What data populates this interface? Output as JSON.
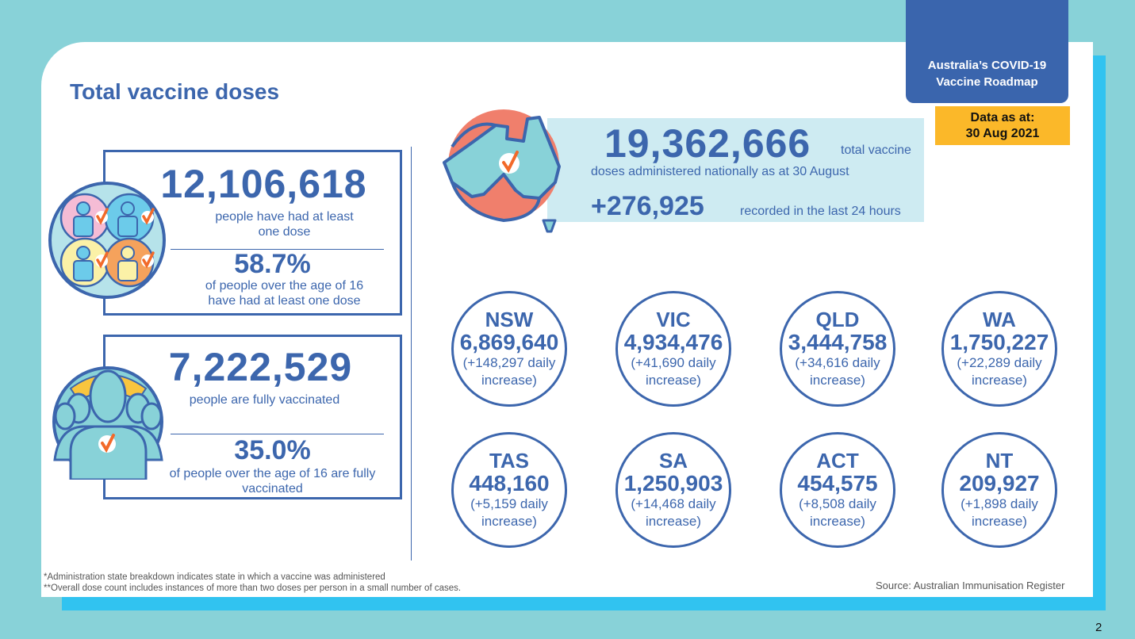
{
  "header": {
    "title": "Total vaccine doses",
    "roadmap_line1": "Australia’s COVID-19",
    "roadmap_line2": "Vaccine Roadmap",
    "data_as_at_label": "Data as at:",
    "data_as_at_date": "30 Aug 2021"
  },
  "first_dose": {
    "count": "12,106,618",
    "count_label": "people have had at least one dose",
    "percent": "58.7%",
    "percent_label": "of people over the age of 16 have had at least one dose"
  },
  "fully_vaccinated": {
    "count": "7,222,529",
    "count_label": "people are fully vaccinated",
    "percent": "35.0%",
    "percent_label": "of people over the age of 16 are fully vaccinated"
  },
  "national": {
    "total": "19,362,666",
    "total_label": "total vaccine",
    "line2": "doses administered nationally as at 30 August",
    "increase": "+276,925",
    "increase_label": "recorded in the last 24 hours"
  },
  "states": [
    {
      "code": "NSW",
      "total": "6,869,640",
      "increase": "(+148,297 daily",
      "increase2": "increase)"
    },
    {
      "code": "VIC",
      "total": "4,934,476",
      "increase": "(+41,690 daily",
      "increase2": "increase)"
    },
    {
      "code": "QLD",
      "total": "3,444,758",
      "increase": "(+34,616 daily",
      "increase2": "increase)"
    },
    {
      "code": "WA",
      "total": "1,750,227",
      "increase": "(+22,289 daily",
      "increase2": "increase)"
    },
    {
      "code": "TAS",
      "total": "448,160",
      "increase": "(+5,159 daily",
      "increase2": "increase)"
    },
    {
      "code": "SA",
      "total": "1,250,903",
      "increase": "(+14,468 daily",
      "increase2": "increase)"
    },
    {
      "code": "ACT",
      "total": "454,575",
      "increase": "(+8,508 daily",
      "increase2": "increase)"
    },
    {
      "code": "NT",
      "total": "209,927",
      "increase": "(+1,898 daily",
      "increase2": "increase)"
    }
  ],
  "footer": {
    "note1": "*Administration state breakdown indicates state in which a vaccine was administered",
    "note2": "**Overall dose count includes instances of more than two doses per person in a small number of cases.",
    "source": "Source: Australian Immunisation Register",
    "page_number": "2"
  },
  "colors": {
    "brand_blue": "#3c66ad",
    "background_teal": "#88d2d8",
    "accent_cyan": "#31c3f0",
    "date_yellow": "#fbb829",
    "check_orange": "#f26a2a",
    "map_coral": "#f07f6c"
  }
}
